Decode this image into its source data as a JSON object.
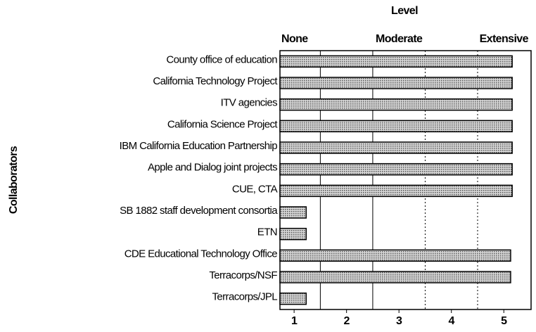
{
  "chart_data": {
    "type": "bar",
    "orientation": "horizontal",
    "x_title": "Level",
    "y_title": "Collaborators",
    "level_labels": [
      {
        "value": 1,
        "label": "None"
      },
      {
        "value": 3,
        "label": "Moderate"
      },
      {
        "value": 5,
        "label": "Extensive"
      }
    ],
    "categories": [
      "County office of education",
      "California Technology Project",
      "ITV agencies",
      "California Science Project",
      "IBM California Education Partnership",
      "Apple and Dialog joint projects",
      "CUE, CTA",
      "SB 1882 staff development consortia",
      "ETN",
      "CDE Educational Technology Office",
      "Terracorps/NSF",
      "Terracorps/JPL"
    ],
    "values": [
      5.16,
      5.16,
      5.16,
      5.16,
      5.16,
      5.16,
      5.16,
      1.23,
      1.23,
      5.13,
      5.13,
      1.23
    ],
    "color": "#a8a8a8",
    "xlim": [
      0.73,
      5.52
    ],
    "xticks": [
      1,
      2,
      3,
      4,
      5
    ],
    "grid_x": [
      1.5,
      2.5,
      3.5,
      4.5
    ]
  }
}
